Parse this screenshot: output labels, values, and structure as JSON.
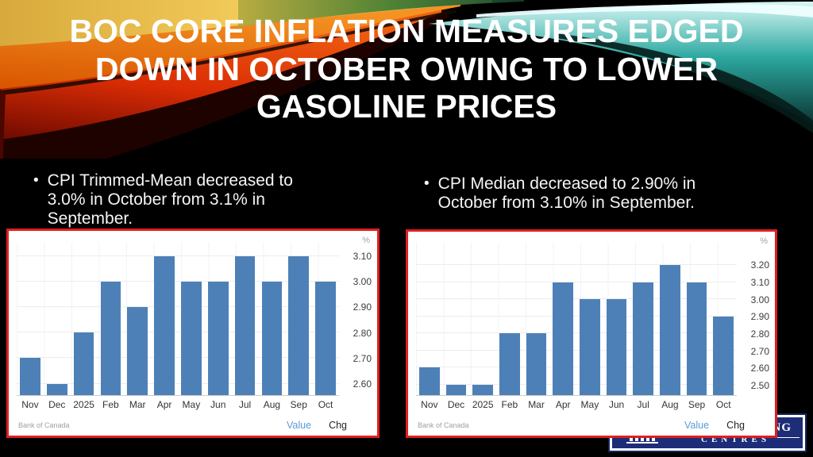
{
  "slide": {
    "title": "BOC CORE INFLATION MEASURES EDGED DOWN IN OCTOBER OWING TO LOWER GASOLINE PRICES",
    "bullet_marker": "•"
  },
  "bullets": {
    "trimmed_mean": "CPI Trimmed-Mean decreased to 3.0% in October from 3.1% in September.",
    "median": "CPI Median decreased to 2.90% in October from 3.10% in September."
  },
  "logo": {
    "word_fragment": "NG",
    "centres_text": "CENTRES",
    "icon": "building-columns-icon",
    "background_color": "#1d2d77"
  },
  "colors": {
    "slide_background": "#000000",
    "chart_border_red": "#de1f1f",
    "bar_blue": "#4e80b8",
    "value_link_blue": "#5b9bd5",
    "title_white": "#ffffff"
  },
  "chart_data": [
    {
      "type": "bar",
      "title": "",
      "categories": [
        "Nov",
        "Dec",
        "2025",
        "Feb",
        "Mar",
        "Apr",
        "May",
        "Jun",
        "Jul",
        "Aug",
        "Sep",
        "Oct"
      ],
      "values": [
        2.7,
        2.6,
        2.8,
        3.0,
        2.9,
        3.1,
        3.0,
        3.0,
        3.1,
        3.0,
        3.1,
        3.0
      ],
      "ylim": [
        2.555,
        3.155
      ],
      "yticks": [
        2.6,
        2.7,
        2.8,
        2.9,
        3.0,
        3.1
      ],
      "unit_label": "%",
      "xlabel": "",
      "ylabel": "%",
      "grid": true,
      "source": "Bank of Canada",
      "legend_value": "Value",
      "legend_chg": "Chg",
      "legend_position": "bottom-right",
      "bar_color": "#4e80b8"
    },
    {
      "type": "bar",
      "title": "",
      "categories": [
        "Nov",
        "Dec",
        "2025",
        "Feb",
        "Mar",
        "Apr",
        "May",
        "Jun",
        "Jul",
        "Aug",
        "Sep",
        "Oct"
      ],
      "values": [
        2.6,
        2.5,
        2.5,
        2.8,
        2.8,
        3.1,
        3.0,
        3.0,
        3.1,
        3.2,
        3.1,
        2.9
      ],
      "ylim": [
        2.44,
        3.33
      ],
      "yticks": [
        2.5,
        2.6,
        2.7,
        2.8,
        2.9,
        3.0,
        3.1,
        3.2
      ],
      "unit_label": "%",
      "xlabel": "",
      "ylabel": "%",
      "grid": true,
      "source": "Bank of Canada",
      "legend_value": "Value",
      "legend_chg": "Chg",
      "legend_position": "bottom-right",
      "bar_color": "#4e80b8"
    }
  ]
}
